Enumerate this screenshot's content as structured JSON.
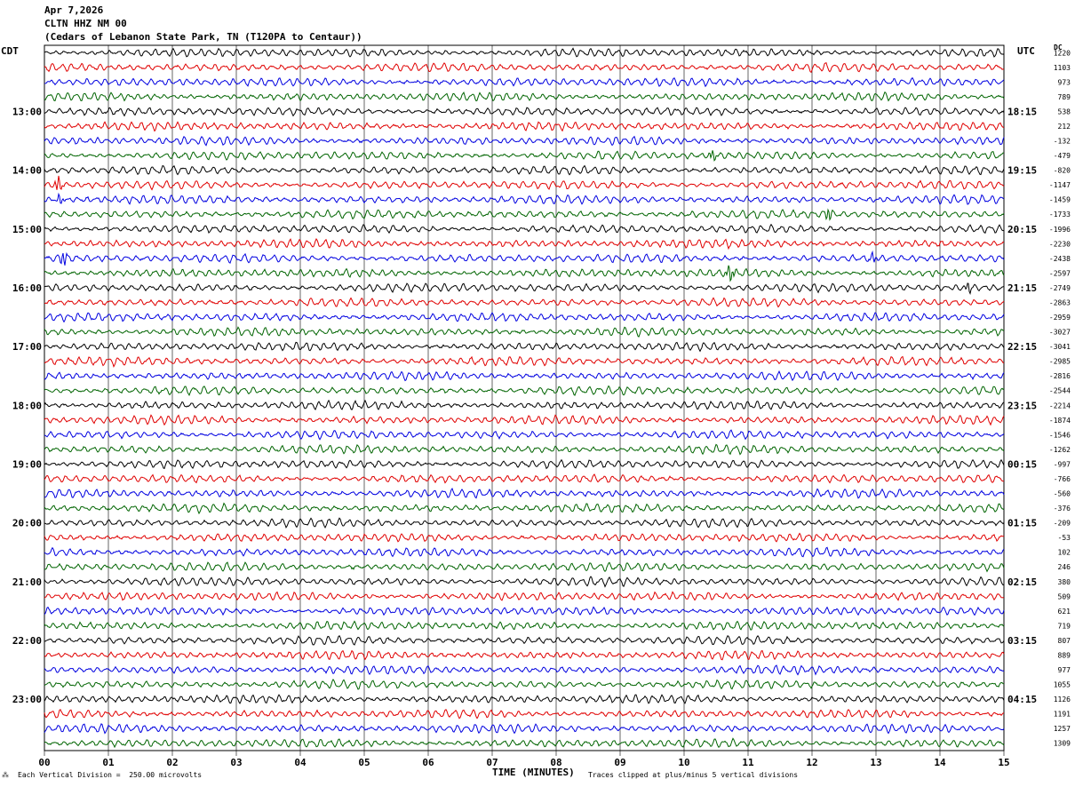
{
  "header": {
    "date": "Apr 7,2026",
    "station": "CLTN HHZ NM 00",
    "location": "(Cedars of Lebanon State Park, TN (T120PA to Centaur))"
  },
  "axes": {
    "left_tz": "CDT",
    "right_tz": "UTC",
    "right_col_label": "DC",
    "xlabel": "TIME (MINUTES)"
  },
  "footer": {
    "scale_note": "Each Vertical Division =  250.00 microvolts",
    "clip_note": "Traces clipped at plus/minus 5 vertical divisions",
    "corner_mark": "⁂"
  },
  "colors": {
    "cycle": [
      "#000000",
      "#e00000",
      "#0000e0",
      "#006400"
    ],
    "grid": "#000000"
  },
  "chart_data": {
    "type": "line",
    "title": "",
    "x_ticks": [
      "00",
      "01",
      "02",
      "03",
      "04",
      "05",
      "06",
      "07",
      "08",
      "09",
      "10",
      "11",
      "12",
      "13",
      "14",
      "15"
    ],
    "xlim": [
      0,
      15
    ],
    "rows": 48,
    "left_hour_labels": [
      {
        "row": 4,
        "label": "13:00"
      },
      {
        "row": 8,
        "label": "14:00"
      },
      {
        "row": 12,
        "label": "15:00"
      },
      {
        "row": 16,
        "label": "16:00"
      },
      {
        "row": 20,
        "label": "17:00"
      },
      {
        "row": 24,
        "label": "18:00"
      },
      {
        "row": 28,
        "label": "19:00"
      },
      {
        "row": 32,
        "label": "20:00"
      },
      {
        "row": 36,
        "label": "21:00"
      },
      {
        "row": 40,
        "label": "22:00"
      },
      {
        "row": 44,
        "label": "23:00"
      }
    ],
    "right_hour_labels": [
      {
        "row": 4,
        "label": "18:15"
      },
      {
        "row": 8,
        "label": "19:15"
      },
      {
        "row": 12,
        "label": "20:15"
      },
      {
        "row": 16,
        "label": "21:15"
      },
      {
        "row": 20,
        "label": "22:15"
      },
      {
        "row": 24,
        "label": "23:15"
      },
      {
        "row": 28,
        "label": "00:15"
      },
      {
        "row": 32,
        "label": "01:15"
      },
      {
        "row": 36,
        "label": "02:15"
      },
      {
        "row": 40,
        "label": "03:15"
      },
      {
        "row": 44,
        "label": "04:15"
      }
    ],
    "dc_offsets": [
      "1220",
      "1103",
      "973",
      "789",
      "538",
      "212",
      "-132",
      "-479",
      "-820",
      "-1147",
      "-1459",
      "-1733",
      "-1996",
      "-2230",
      "-2438",
      "-2597",
      "-2749",
      "-2863",
      "-2959",
      "-3027",
      "-3041",
      "-2985",
      "-2816",
      "-2544",
      "-2214",
      "-1874",
      "-1546",
      "-1262",
      "-997",
      "-766",
      "-560",
      "-376",
      "-209",
      "-53",
      "102",
      "246",
      "380",
      "509",
      "621",
      "719",
      "807",
      "889",
      "977",
      "1055",
      "1126",
      "1191",
      "1257",
      "1309"
    ],
    "spikes": [
      {
        "row": 9,
        "x": 0.22,
        "amp": 9
      },
      {
        "row": 10,
        "x": 0.25,
        "amp": 6
      },
      {
        "row": 11,
        "x": 12.25,
        "amp": 8
      },
      {
        "row": 14,
        "x": 0.3,
        "amp": 9
      },
      {
        "row": 14,
        "x": 12.95,
        "amp": 6
      },
      {
        "row": 15,
        "x": 10.72,
        "amp": 11
      },
      {
        "row": 7,
        "x": 10.45,
        "amp": 7
      },
      {
        "row": 16,
        "x": 14.45,
        "amp": 6
      }
    ]
  }
}
